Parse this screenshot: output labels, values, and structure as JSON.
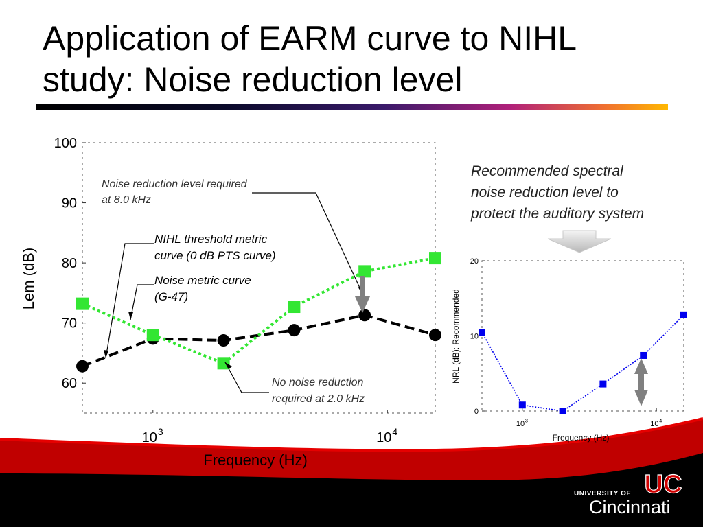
{
  "slide": {
    "title_line1": "Application of EARM curve to NIHL",
    "title_line2": "study: Noise reduction level",
    "recommend_note": [
      "Recommended spectral",
      "noise reduction level to",
      "protect the auditory system"
    ],
    "logo": {
      "small": "UNIVERSITY OF",
      "big": "Cincinnati",
      "mark": "UC"
    },
    "colors": {
      "green": "#33e633",
      "black": "#000000",
      "blue": "#0000ee",
      "footer_red": "#cc0000",
      "gray_arrow": "#777777"
    }
  },
  "chart_data": [
    {
      "type": "line",
      "xlabel": "Frequency (Hz)",
      "ylabel": "Lem (dB)",
      "x_scale": "log",
      "xlim": [
        500,
        16000
      ],
      "ylim": [
        55,
        100
      ],
      "yticks": [
        60,
        70,
        80,
        90,
        100
      ],
      "xticks": [
        {
          "base": "10",
          "exp": "3"
        },
        {
          "base": "10",
          "exp": "4"
        }
      ],
      "series": [
        {
          "x": [
            500,
            1000,
            2000,
            4000,
            8000,
            16000
          ],
          "y": [
            62.8,
            67.4,
            67.1,
            68.8,
            71.3,
            68.0
          ],
          "color": "#000000",
          "marker": "circle",
          "line": "dashed"
        },
        {
          "x": [
            500,
            1000,
            2000,
            4000,
            8000,
            16000
          ],
          "y": [
            73.2,
            68.0,
            63.3,
            72.7,
            78.6,
            80.8
          ],
          "color": "#33e633",
          "marker": "square",
          "line": "dotted"
        }
      ],
      "annotations": [
        {
          "id": "nrl8k",
          "lines": [
            "Noise reduction level required",
            "at 8.0 kHz"
          ]
        },
        {
          "id": "nihl",
          "lines": [
            "NIHL threshold metric",
            "curve (0 dB PTS curve)"
          ]
        },
        {
          "id": "g47",
          "lines": [
            "Noise metric curve",
            "(G-47)"
          ]
        },
        {
          "id": "none2k",
          "lines": [
            "No noise reduction",
            "required at 2.0 kHz"
          ]
        }
      ]
    },
    {
      "type": "line",
      "xlabel": "Frequency (Hz)",
      "ylabel": "NRL (dB): Recommended",
      "x_scale": "log",
      "xlim": [
        500,
        16000
      ],
      "ylim": [
        0,
        20
      ],
      "yticks": [
        0,
        10,
        20
      ],
      "xticks": [
        {
          "base": "10",
          "exp": "3"
        },
        {
          "base": "10",
          "exp": "4"
        }
      ],
      "series": [
        {
          "x": [
            500,
            1000,
            2000,
            4000,
            8000,
            16000
          ],
          "y": [
            10.5,
            0.8,
            0.0,
            3.6,
            7.4,
            12.8
          ],
          "color": "#0000ee",
          "marker": "square",
          "line": "dotted"
        }
      ]
    }
  ]
}
